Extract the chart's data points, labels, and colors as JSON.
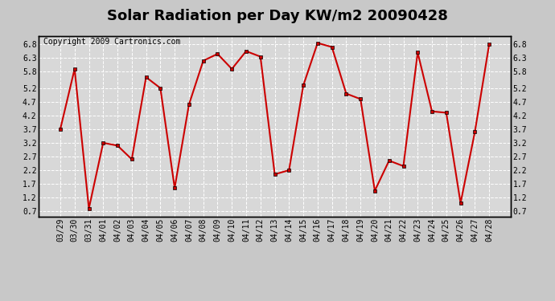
{
  "title": "Solar Radiation per Day KW/m2 20090428",
  "copyright": "Copyright 2009 Cartronics.com",
  "labels": [
    "03/29",
    "03/30",
    "03/31",
    "04/01",
    "04/02",
    "04/03",
    "04/04",
    "04/05",
    "04/06",
    "04/07",
    "04/08",
    "04/09",
    "04/10",
    "04/11",
    "04/12",
    "04/13",
    "04/14",
    "04/15",
    "04/16",
    "04/17",
    "04/18",
    "04/19",
    "04/20",
    "04/21",
    "04/22",
    "04/23",
    "04/24",
    "04/25",
    "04/26",
    "04/27",
    "04/28"
  ],
  "values": [
    3.7,
    5.9,
    0.8,
    3.2,
    3.1,
    2.6,
    5.6,
    5.2,
    1.55,
    4.6,
    6.2,
    6.45,
    5.9,
    6.55,
    6.35,
    2.05,
    2.2,
    5.3,
    6.85,
    6.7,
    5.0,
    4.8,
    1.45,
    2.55,
    2.35,
    6.5,
    4.35,
    4.3,
    1.0,
    3.6,
    6.8
  ],
  "line_color": "#cc0000",
  "marker": "s",
  "marker_size": 2.5,
  "line_width": 1.5,
  "outer_bg_color": "#c8c8c8",
  "plot_bg_color": "#d8d8d8",
  "grid_color": "#ffffff",
  "grid_style": "--",
  "ylim": [
    0.5,
    7.1
  ],
  "yticks": [
    0.7,
    1.2,
    1.7,
    2.2,
    2.7,
    3.2,
    3.7,
    4.2,
    4.7,
    5.2,
    5.8,
    6.3,
    6.8
  ],
  "title_fontsize": 13,
  "copyright_fontsize": 7,
  "tick_fontsize": 7
}
